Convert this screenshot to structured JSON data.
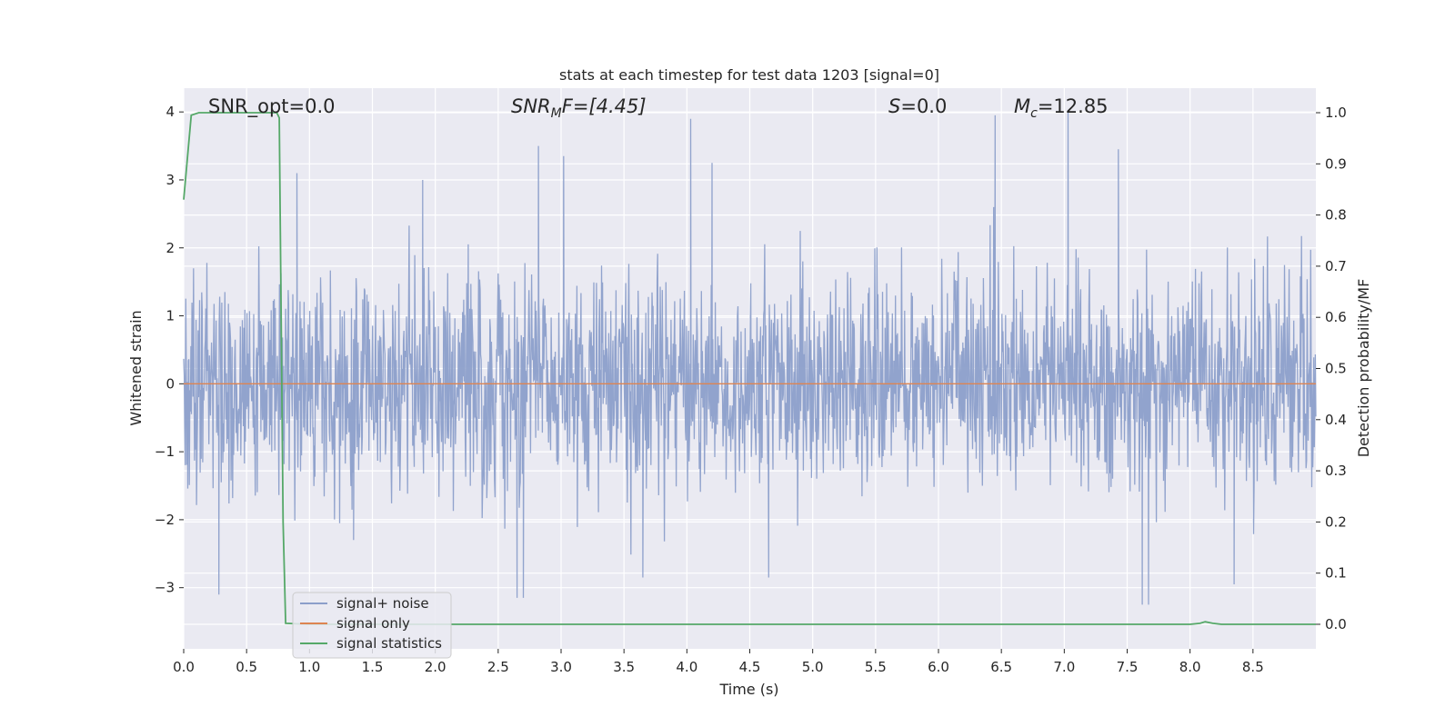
{
  "chart_data": {
    "type": "line",
    "title": "stats at each timestep for test data 1203 [signal=0]",
    "xlabel": "Time (s)",
    "ylabel": "Whitened strain",
    "y2label": "Detection probability/MF",
    "xlim": [
      0.0,
      9.0
    ],
    "ylim": [
      -3.9,
      4.35
    ],
    "y2lim": [
      -0.048,
      1.048
    ],
    "x_ticks": [
      "0.0",
      "0.5",
      "1.0",
      "1.5",
      "2.0",
      "2.5",
      "3.0",
      "3.5",
      "4.0",
      "4.5",
      "5.0",
      "5.5",
      "6.0",
      "6.5",
      "7.0",
      "7.5",
      "8.0",
      "8.5"
    ],
    "y_ticks": [
      "4",
      "3",
      "2",
      "1",
      "0",
      "−1",
      "−2",
      "−3"
    ],
    "y2_ticks": [
      "1.0",
      "0.9",
      "0.8",
      "0.7",
      "0.6",
      "0.5",
      "0.4",
      "0.3",
      "0.2",
      "0.1",
      "0.0"
    ],
    "grid": true,
    "legend_position": "bottom-left",
    "annotations": {
      "snr_opt": "SNR_opt=0.0",
      "snr_mf_main": "SNR",
      "snr_mf_sub": "M",
      "snr_mf_rest": "F=[4.45]",
      "s_main": "S",
      "s_rest": "=0.0",
      "mc_main": "M",
      "mc_sub": "c",
      "mc_rest": "=12.85"
    },
    "series": [
      {
        "name": "signal+ noise",
        "color": "#8c9fca",
        "axis": "left",
        "amplitude_typical": [
          -2.0,
          2.0
        ],
        "peak_maxima": [
          {
            "x": 4.03,
            "y": 3.9
          },
          {
            "x": 7.03,
            "y": 4.0
          },
          {
            "x": 6.45,
            "y": 3.95
          },
          {
            "x": 2.82,
            "y": 3.5
          },
          {
            "x": 3.02,
            "y": 3.35
          },
          {
            "x": 4.2,
            "y": 3.25
          },
          {
            "x": 7.43,
            "y": 3.45
          },
          {
            "x": 0.9,
            "y": 3.1
          },
          {
            "x": 1.9,
            "y": 3.0
          }
        ],
        "peak_minima": [
          {
            "x": 2.65,
            "y": -3.15
          },
          {
            "x": 2.7,
            "y": -3.15
          },
          {
            "x": 0.28,
            "y": -3.1
          },
          {
            "x": 7.62,
            "y": -3.25
          },
          {
            "x": 7.67,
            "y": -3.25
          },
          {
            "x": 8.35,
            "y": -2.95
          },
          {
            "x": 3.65,
            "y": -2.85
          },
          {
            "x": 4.65,
            "y": -2.85
          },
          {
            "x": 1.35,
            "y": -2.3
          }
        ]
      },
      {
        "name": "signal only",
        "color": "#dd8452",
        "axis": "left",
        "x": [
          0.0,
          9.0
        ],
        "y": [
          0.0,
          0.0
        ]
      },
      {
        "name": "signal statistics",
        "color": "#55a868",
        "axis": "right",
        "x": [
          0.0,
          0.06,
          0.12,
          0.2,
          0.5,
          0.74,
          0.76,
          0.79,
          0.81,
          1.0,
          2.0,
          4.0,
          6.0,
          8.0,
          8.08,
          8.12,
          8.18,
          8.25,
          9.0
        ],
        "y": [
          0.83,
          0.995,
          1.0,
          1.0,
          1.0,
          1.0,
          0.99,
          0.2,
          0.002,
          0.0,
          0.0,
          0.0,
          0.0,
          0.0,
          0.002,
          0.005,
          0.002,
          0.0,
          0.0
        ]
      }
    ]
  }
}
